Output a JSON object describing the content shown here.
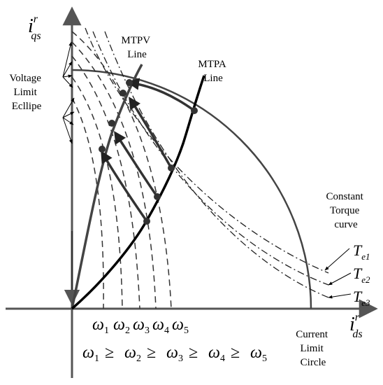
{
  "axes": {
    "y_label": "i",
    "y_label_sup": "r",
    "y_label_sub": "qs",
    "x_label": "i",
    "x_label_sup": "r",
    "x_label_sub": "ds"
  },
  "labels": {
    "mtpv": [
      "MTPV",
      "Line"
    ],
    "mtpa": [
      "MTPA",
      "Line"
    ],
    "voltage_limit": [
      "Voltage",
      "Limit",
      "Ecllipe"
    ],
    "constant_torque": [
      "Constant",
      "Torque",
      "curve"
    ],
    "current_limit": [
      "Current",
      "Limit",
      "Circle"
    ]
  },
  "torque_labels": [
    {
      "main": "T",
      "sub": "e1"
    },
    {
      "main": "T",
      "sub": "e2"
    },
    {
      "main": "T",
      "sub": "e3"
    }
  ],
  "omega_ticks": [
    {
      "main": "ω",
      "sub": "1"
    },
    {
      "main": "ω",
      "sub": "2"
    },
    {
      "main": "ω",
      "sub": "3"
    },
    {
      "main": "ω",
      "sub": "4"
    },
    {
      "main": "ω",
      "sub": "5"
    }
  ],
  "omega_relation": {
    "symbol": "ω",
    "relation": "≥",
    "subs": [
      "1",
      "2",
      "3",
      "4",
      "5"
    ]
  },
  "colors": {
    "axis": "#555555",
    "curves": "#000000",
    "gray_curves": "#444444"
  }
}
